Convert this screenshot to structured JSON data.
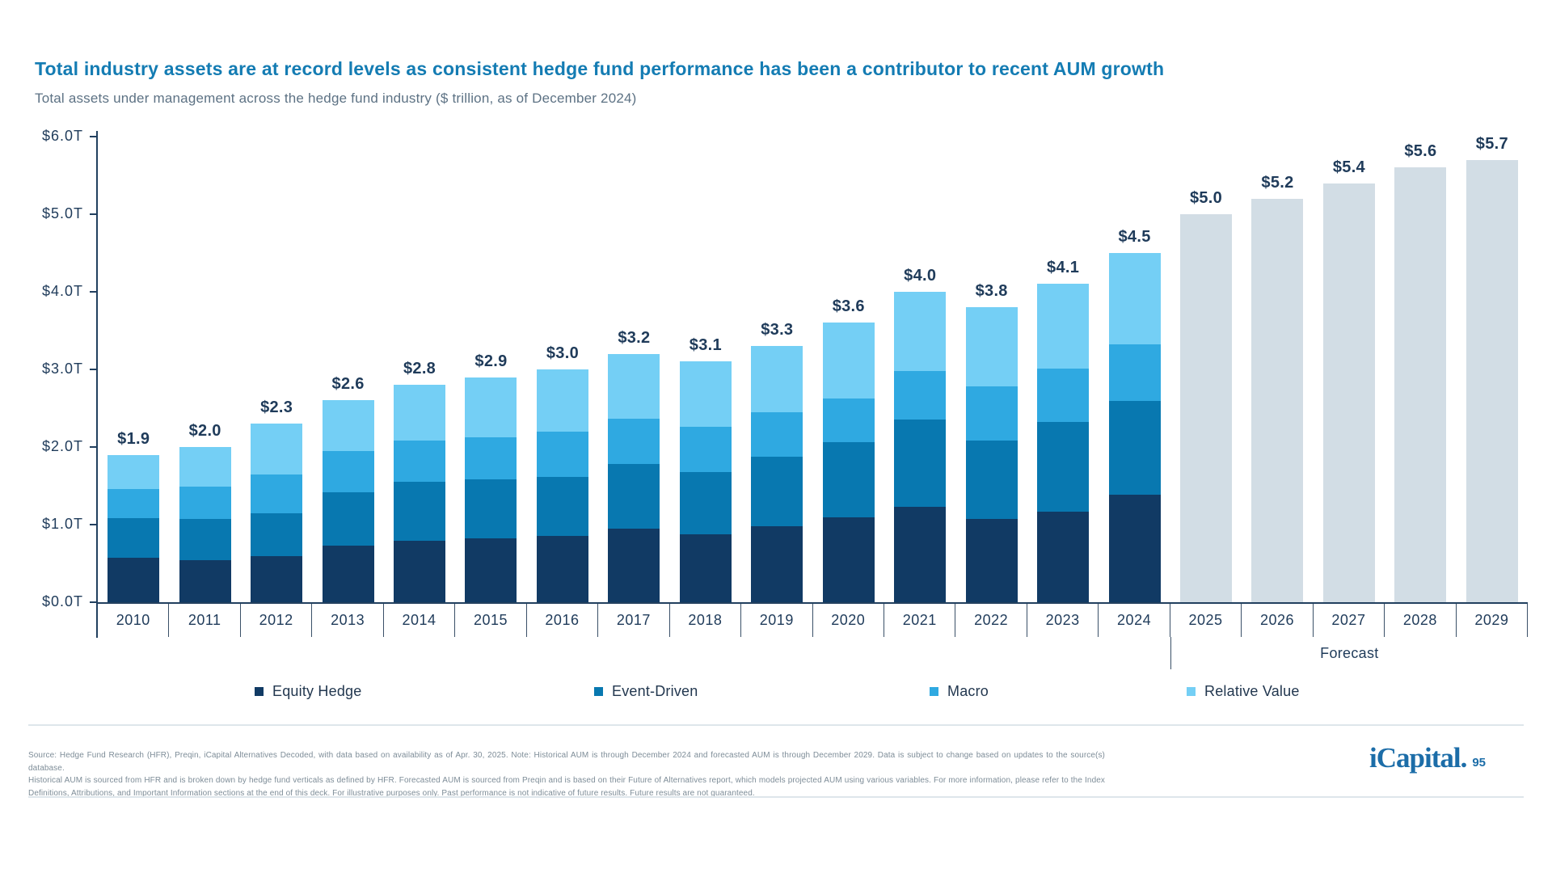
{
  "header": {
    "title": "Total industry assets are at record levels as consistent hedge fund performance has been a contributor to recent AUM growth",
    "subtitle": "Total assets under management across the hedge fund industry ($ trillion, as of December 2024)"
  },
  "chart_data": {
    "type": "bar",
    "stacked": true,
    "title": "Total assets under management across the hedge fund industry ($ trillion, as of December 2024)",
    "xlabel": "",
    "ylabel": "",
    "ylim": [
      0,
      6
    ],
    "y_tick_labels": [
      "$0.0T",
      "$1.0T",
      "$2.0T",
      "$3.0T",
      "$4.0T",
      "$5.0T",
      "$6.0T"
    ],
    "grid": false,
    "legend_position": "bottom",
    "series_names": [
      "Equity Hedge",
      "Event-Driven",
      "Macro",
      "Relative Value"
    ],
    "series_colors": [
      "#113A64",
      "#0878B0",
      "#2FA9E1",
      "#74CFF5"
    ],
    "forecast_color": "#D2DDE5",
    "forecast_label": "Forecast",
    "categories": [
      "2010",
      "2011",
      "2012",
      "2013",
      "2014",
      "2015",
      "2016",
      "2017",
      "2018",
      "2019",
      "2020",
      "2021",
      "2022",
      "2023",
      "2024",
      "2025",
      "2026",
      "2027",
      "2028",
      "2029"
    ],
    "years": [
      {
        "year": "2010",
        "total": 1.9,
        "label": "$1.9",
        "segments": [
          0.57,
          0.51,
          0.38,
          0.44
        ],
        "forecast": false
      },
      {
        "year": "2011",
        "total": 2.0,
        "label": "$2.0",
        "segments": [
          0.54,
          0.53,
          0.42,
          0.51
        ],
        "forecast": false
      },
      {
        "year": "2012",
        "total": 2.3,
        "label": "$2.3",
        "segments": [
          0.59,
          0.56,
          0.5,
          0.65
        ],
        "forecast": false
      },
      {
        "year": "2013",
        "total": 2.6,
        "label": "$2.6",
        "segments": [
          0.73,
          0.69,
          0.53,
          0.65
        ],
        "forecast": false
      },
      {
        "year": "2014",
        "total": 2.8,
        "label": "$2.8",
        "segments": [
          0.79,
          0.76,
          0.53,
          0.72
        ],
        "forecast": false
      },
      {
        "year": "2015",
        "total": 2.9,
        "label": "$2.9",
        "segments": [
          0.82,
          0.76,
          0.55,
          0.77
        ],
        "forecast": false
      },
      {
        "year": "2016",
        "total": 3.0,
        "label": "$3.0",
        "segments": [
          0.85,
          0.76,
          0.59,
          0.8
        ],
        "forecast": false
      },
      {
        "year": "2017",
        "total": 3.2,
        "label": "$3.2",
        "segments": [
          0.95,
          0.83,
          0.58,
          0.84
        ],
        "forecast": false
      },
      {
        "year": "2018",
        "total": 3.1,
        "label": "$3.1",
        "segments": [
          0.87,
          0.81,
          0.58,
          0.84
        ],
        "forecast": false
      },
      {
        "year": "2019",
        "total": 3.3,
        "label": "$3.3",
        "segments": [
          0.98,
          0.9,
          0.57,
          0.85
        ],
        "forecast": false
      },
      {
        "year": "2020",
        "total": 3.6,
        "label": "$3.6",
        "segments": [
          1.09,
          0.97,
          0.57,
          0.97
        ],
        "forecast": false
      },
      {
        "year": "2021",
        "total": 4.0,
        "label": "$4.0",
        "segments": [
          1.23,
          1.12,
          0.63,
          1.02
        ],
        "forecast": false
      },
      {
        "year": "2022",
        "total": 3.8,
        "label": "$3.8",
        "segments": [
          1.07,
          1.01,
          0.7,
          1.02
        ],
        "forecast": false
      },
      {
        "year": "2023",
        "total": 4.1,
        "label": "$4.1",
        "segments": [
          1.17,
          1.15,
          0.69,
          1.09
        ],
        "forecast": false
      },
      {
        "year": "2024",
        "total": 4.5,
        "label": "$4.5",
        "segments": [
          1.39,
          1.2,
          0.73,
          1.18
        ],
        "forecast": false
      },
      {
        "year": "2025",
        "total": 5.0,
        "label": "$5.0",
        "forecast": true
      },
      {
        "year": "2026",
        "total": 5.2,
        "label": "$5.2",
        "forecast": true
      },
      {
        "year": "2027",
        "total": 5.4,
        "label": "$5.4",
        "forecast": true
      },
      {
        "year": "2028",
        "total": 5.6,
        "label": "$5.6",
        "forecast": true
      },
      {
        "year": "2029",
        "total": 5.7,
        "label": "$5.7",
        "forecast": true
      }
    ]
  },
  "footer": {
    "lines": [
      "Source: Hedge Fund Research (HFR), Preqin, iCapital Alternatives Decoded, with data based on availability as of Apr. 30, 2025. Note: Historical AUM is through December 2024 and forecasted AUM is through December 2029. Data is subject to change based on updates to the source(s) database.",
      "Historical AUM is sourced from HFR and is broken down by hedge fund verticals as defined by HFR. Forecasted AUM is sourced from Preqin and is based on their Future of Alternatives report, which models projected AUM using various variables. For more information, please refer to the Index",
      "Definitions, Attributions, and Important Information sections at the end of this deck. For illustrative purposes only. Past performance is not indicative of future results. Future results are not guaranteed."
    ],
    "logo_text": "iCapital.",
    "page_number": "95"
  },
  "colors": {
    "title": "#147CB3",
    "subtitle": "#5D7284",
    "axis": "#22405F",
    "value_label": "#1F3B5A",
    "forecast_bar": "#D2DDE5",
    "divider": "#DEE6EB",
    "footnote": "#7E8D98",
    "logo": "#1C6DA8"
  }
}
